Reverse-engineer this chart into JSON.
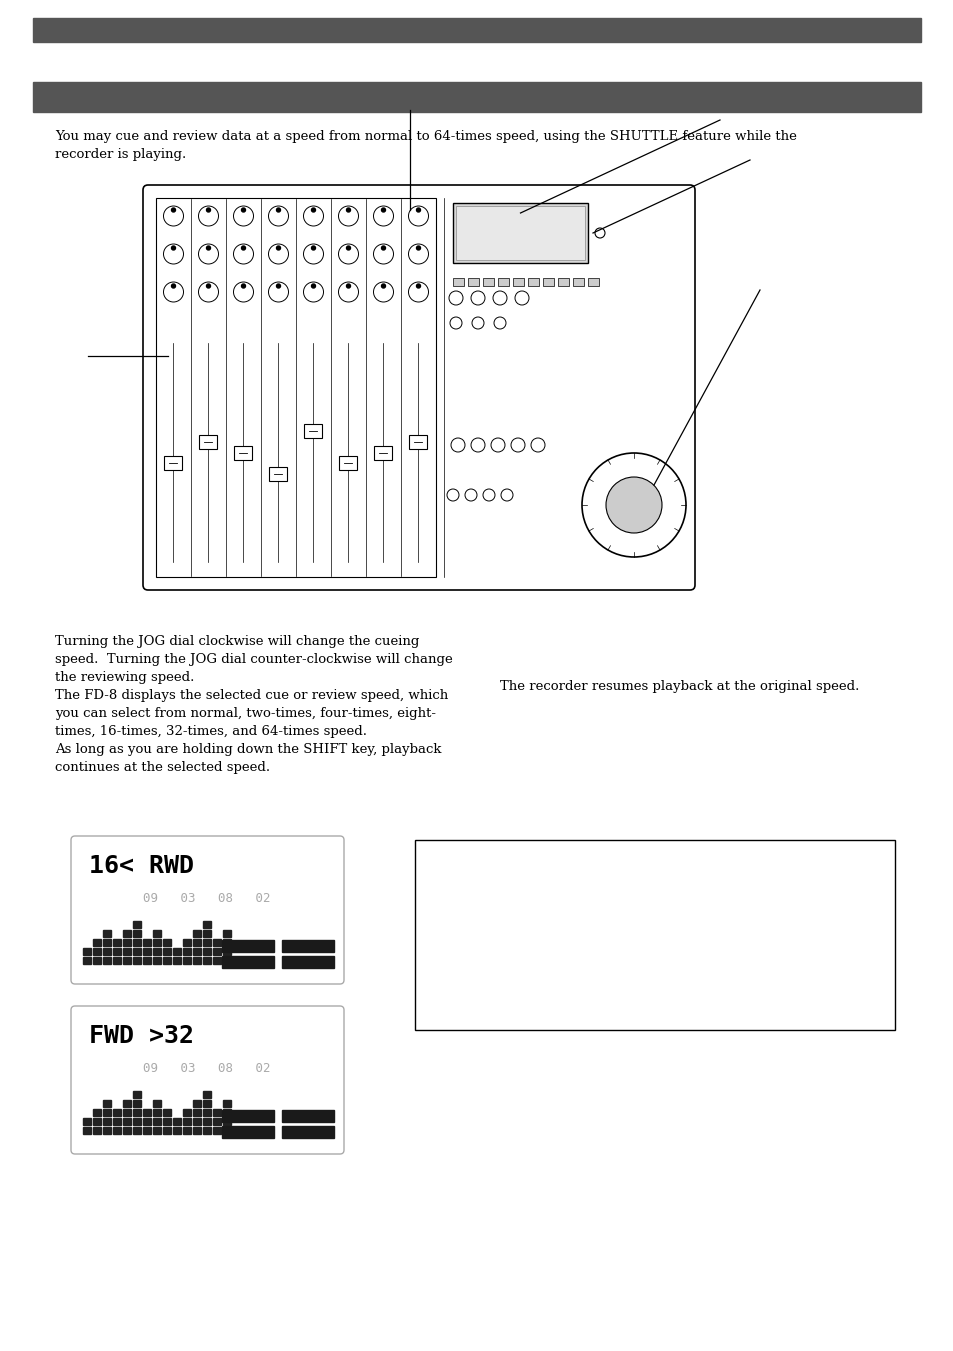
{
  "bg_color": "#ffffff",
  "header_bar_color": "#555555",
  "body_text1": "You may cue and review data at a speed from normal to 64-times speed, using the SHUTTLE feature while the\nrecorder is playing.",
  "left_col_text": "Turning the JOG dial clockwise will change the cueing\nspeed.  Turning the JOG dial counter-clockwise will change\nthe reviewing speed.\nThe FD-8 displays the selected cue or review speed, which\nyou can select from normal, two-times, four-times, eight-\ntimes, 16-times, 32-times, and 64-times speed.\nAs long as you are holding down the SHIFT key, playback\ncontinues at the selected speed.",
  "right_col_text": "The recorder resumes playback at the original speed.",
  "display_box1_text_main": "16< RWD",
  "display_box1_text_time": "09   03   08   02",
  "display_box2_text_main": "FWD >32",
  "display_box2_text_time": "09   03   08   02"
}
